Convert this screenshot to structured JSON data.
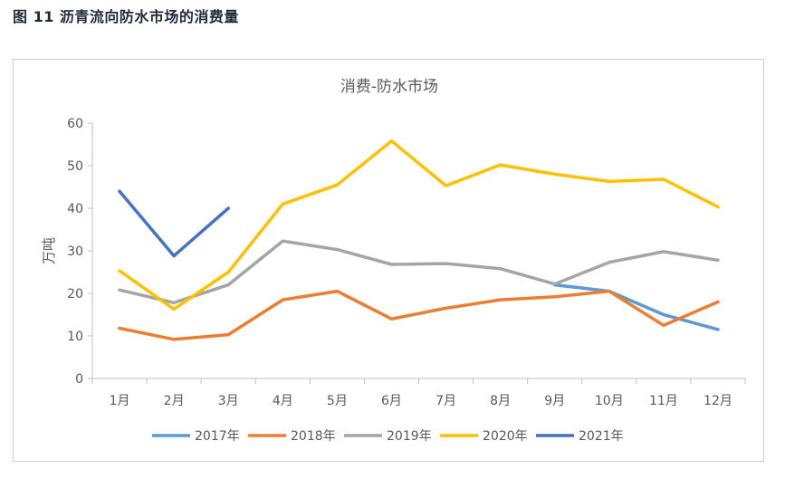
{
  "figure_caption": "图 11 沥青流向防水市场的消费量",
  "chart_data": {
    "type": "line",
    "title": "消费-防水市场",
    "ylabel": "万吨",
    "xlabel": "",
    "ylim": [
      0,
      60
    ],
    "yticks": [
      0,
      10,
      20,
      30,
      40,
      50,
      60
    ],
    "grid": false,
    "legend_position": "bottom",
    "categories": [
      "1月",
      "2月",
      "3月",
      "4月",
      "5月",
      "6月",
      "7月",
      "8月",
      "9月",
      "10月",
      "11月",
      "12月"
    ],
    "series": [
      {
        "name": "2017年",
        "color": "#5b9bd5",
        "values": [
          null,
          null,
          null,
          null,
          null,
          null,
          null,
          null,
          22.0,
          20.5,
          15.0,
          11.5
        ]
      },
      {
        "name": "2018年",
        "color": "#ed7d31",
        "values": [
          11.8,
          9.2,
          10.3,
          18.5,
          20.5,
          14.0,
          16.5,
          18.5,
          19.2,
          20.5,
          12.5,
          18.0
        ]
      },
      {
        "name": "2019年",
        "color": "#a5a5a5",
        "values": [
          20.8,
          17.8,
          22.0,
          32.3,
          30.3,
          26.8,
          27.0,
          25.8,
          22.2,
          27.3,
          29.8,
          27.8
        ]
      },
      {
        "name": "2020年",
        "color": "#ffc000",
        "values": [
          25.3,
          16.3,
          25.0,
          41.0,
          45.5,
          55.8,
          45.3,
          50.2,
          48.0,
          46.3,
          46.8,
          40.3
        ]
      },
      {
        "name": "2021年",
        "color": "#4472c4",
        "values": [
          44.0,
          28.8,
          40.0,
          null,
          null,
          null,
          null,
          null,
          null,
          null,
          null,
          null
        ]
      }
    ]
  }
}
